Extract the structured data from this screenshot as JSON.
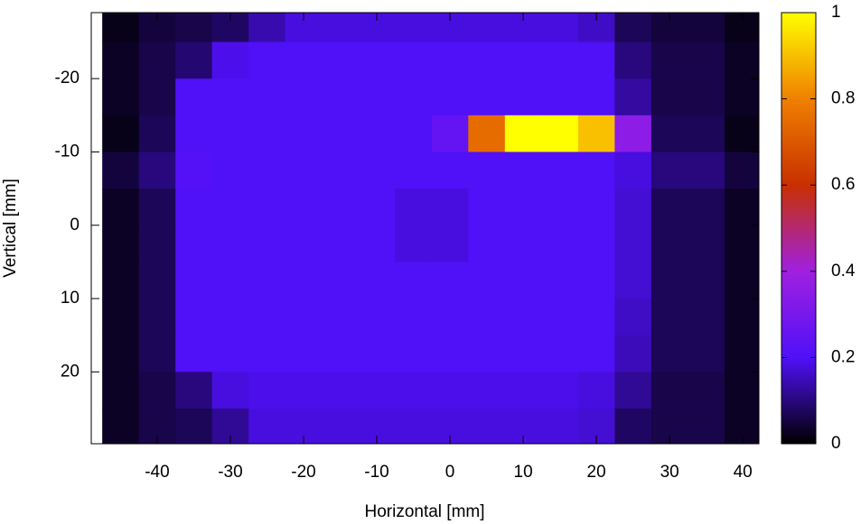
{
  "chart_data": {
    "type": "heatmap",
    "xlabel": "Horizontal [mm]",
    "ylabel": "Vertical [mm]",
    "xlim": [
      -49,
      42.2
    ],
    "ylim": [
      -29,
      29.8
    ],
    "y_reversed": true,
    "xticks": [
      -40,
      -30,
      -20,
      -10,
      0,
      10,
      20,
      30,
      40
    ],
    "yticks": [
      -20,
      -10,
      0,
      10,
      20
    ],
    "x": [
      -45,
      -40,
      -35,
      -30,
      -25,
      -20,
      -15,
      -10,
      -5,
      0,
      5,
      10,
      15,
      20,
      25,
      30,
      35,
      40
    ],
    "y": [
      -27.5,
      -22.5,
      -17.5,
      -12.5,
      -7.5,
      -2.5,
      2.5,
      7.5,
      12.5,
      17.5,
      22.5,
      27.5
    ],
    "z": [
      [
        0.02,
        0.05,
        0.06,
        0.08,
        0.14,
        0.18,
        0.18,
        0.18,
        0.18,
        0.18,
        0.18,
        0.18,
        0.18,
        0.16,
        0.07,
        0.05,
        0.05,
        0.02
      ],
      [
        0.03,
        0.06,
        0.09,
        0.19,
        0.2,
        0.2,
        0.2,
        0.2,
        0.2,
        0.2,
        0.2,
        0.2,
        0.2,
        0.2,
        0.1,
        0.06,
        0.06,
        0.03
      ],
      [
        0.03,
        0.06,
        0.2,
        0.2,
        0.2,
        0.2,
        0.2,
        0.2,
        0.2,
        0.2,
        0.2,
        0.2,
        0.2,
        0.2,
        0.13,
        0.06,
        0.06,
        0.03
      ],
      [
        0.02,
        0.07,
        0.2,
        0.2,
        0.2,
        0.2,
        0.2,
        0.2,
        0.2,
        0.25,
        0.75,
        1,
        1,
        0.9,
        0.35,
        0.07,
        0.07,
        0.02
      ],
      [
        0.05,
        0.1,
        0.21,
        0.2,
        0.2,
        0.2,
        0.2,
        0.2,
        0.2,
        0.2,
        0.2,
        0.2,
        0.2,
        0.2,
        0.18,
        0.1,
        0.1,
        0.05
      ],
      [
        0.03,
        0.07,
        0.2,
        0.2,
        0.2,
        0.2,
        0.2,
        0.2,
        0.18,
        0.18,
        0.2,
        0.2,
        0.2,
        0.2,
        0.17,
        0.07,
        0.07,
        0.03
      ],
      [
        0.03,
        0.07,
        0.2,
        0.2,
        0.2,
        0.2,
        0.2,
        0.2,
        0.18,
        0.18,
        0.2,
        0.2,
        0.2,
        0.2,
        0.17,
        0.07,
        0.07,
        0.03
      ],
      [
        0.03,
        0.07,
        0.2,
        0.2,
        0.2,
        0.2,
        0.2,
        0.2,
        0.2,
        0.2,
        0.2,
        0.2,
        0.2,
        0.2,
        0.17,
        0.07,
        0.07,
        0.03
      ],
      [
        0.03,
        0.07,
        0.2,
        0.2,
        0.2,
        0.2,
        0.2,
        0.2,
        0.2,
        0.2,
        0.2,
        0.2,
        0.2,
        0.2,
        0.16,
        0.07,
        0.07,
        0.03
      ],
      [
        0.03,
        0.07,
        0.2,
        0.2,
        0.2,
        0.2,
        0.2,
        0.2,
        0.2,
        0.2,
        0.2,
        0.2,
        0.2,
        0.2,
        0.15,
        0.07,
        0.07,
        0.03
      ],
      [
        0.03,
        0.06,
        0.1,
        0.18,
        0.19,
        0.19,
        0.19,
        0.19,
        0.19,
        0.19,
        0.19,
        0.19,
        0.19,
        0.18,
        0.12,
        0.06,
        0.06,
        0.03
      ],
      [
        0.03,
        0.06,
        0.07,
        0.12,
        0.18,
        0.18,
        0.18,
        0.18,
        0.18,
        0.18,
        0.18,
        0.18,
        0.18,
        0.17,
        0.08,
        0.06,
        0.06,
        0.03
      ]
    ],
    "zlim": [
      0,
      1
    ],
    "zticks": [
      0,
      0.2,
      0.4,
      0.6,
      0.8,
      1
    ],
    "colormap": [
      "#000000",
      "#5010f8",
      "#a020e0",
      "#c83000",
      "#f08000",
      "#ffff00"
    ]
  }
}
